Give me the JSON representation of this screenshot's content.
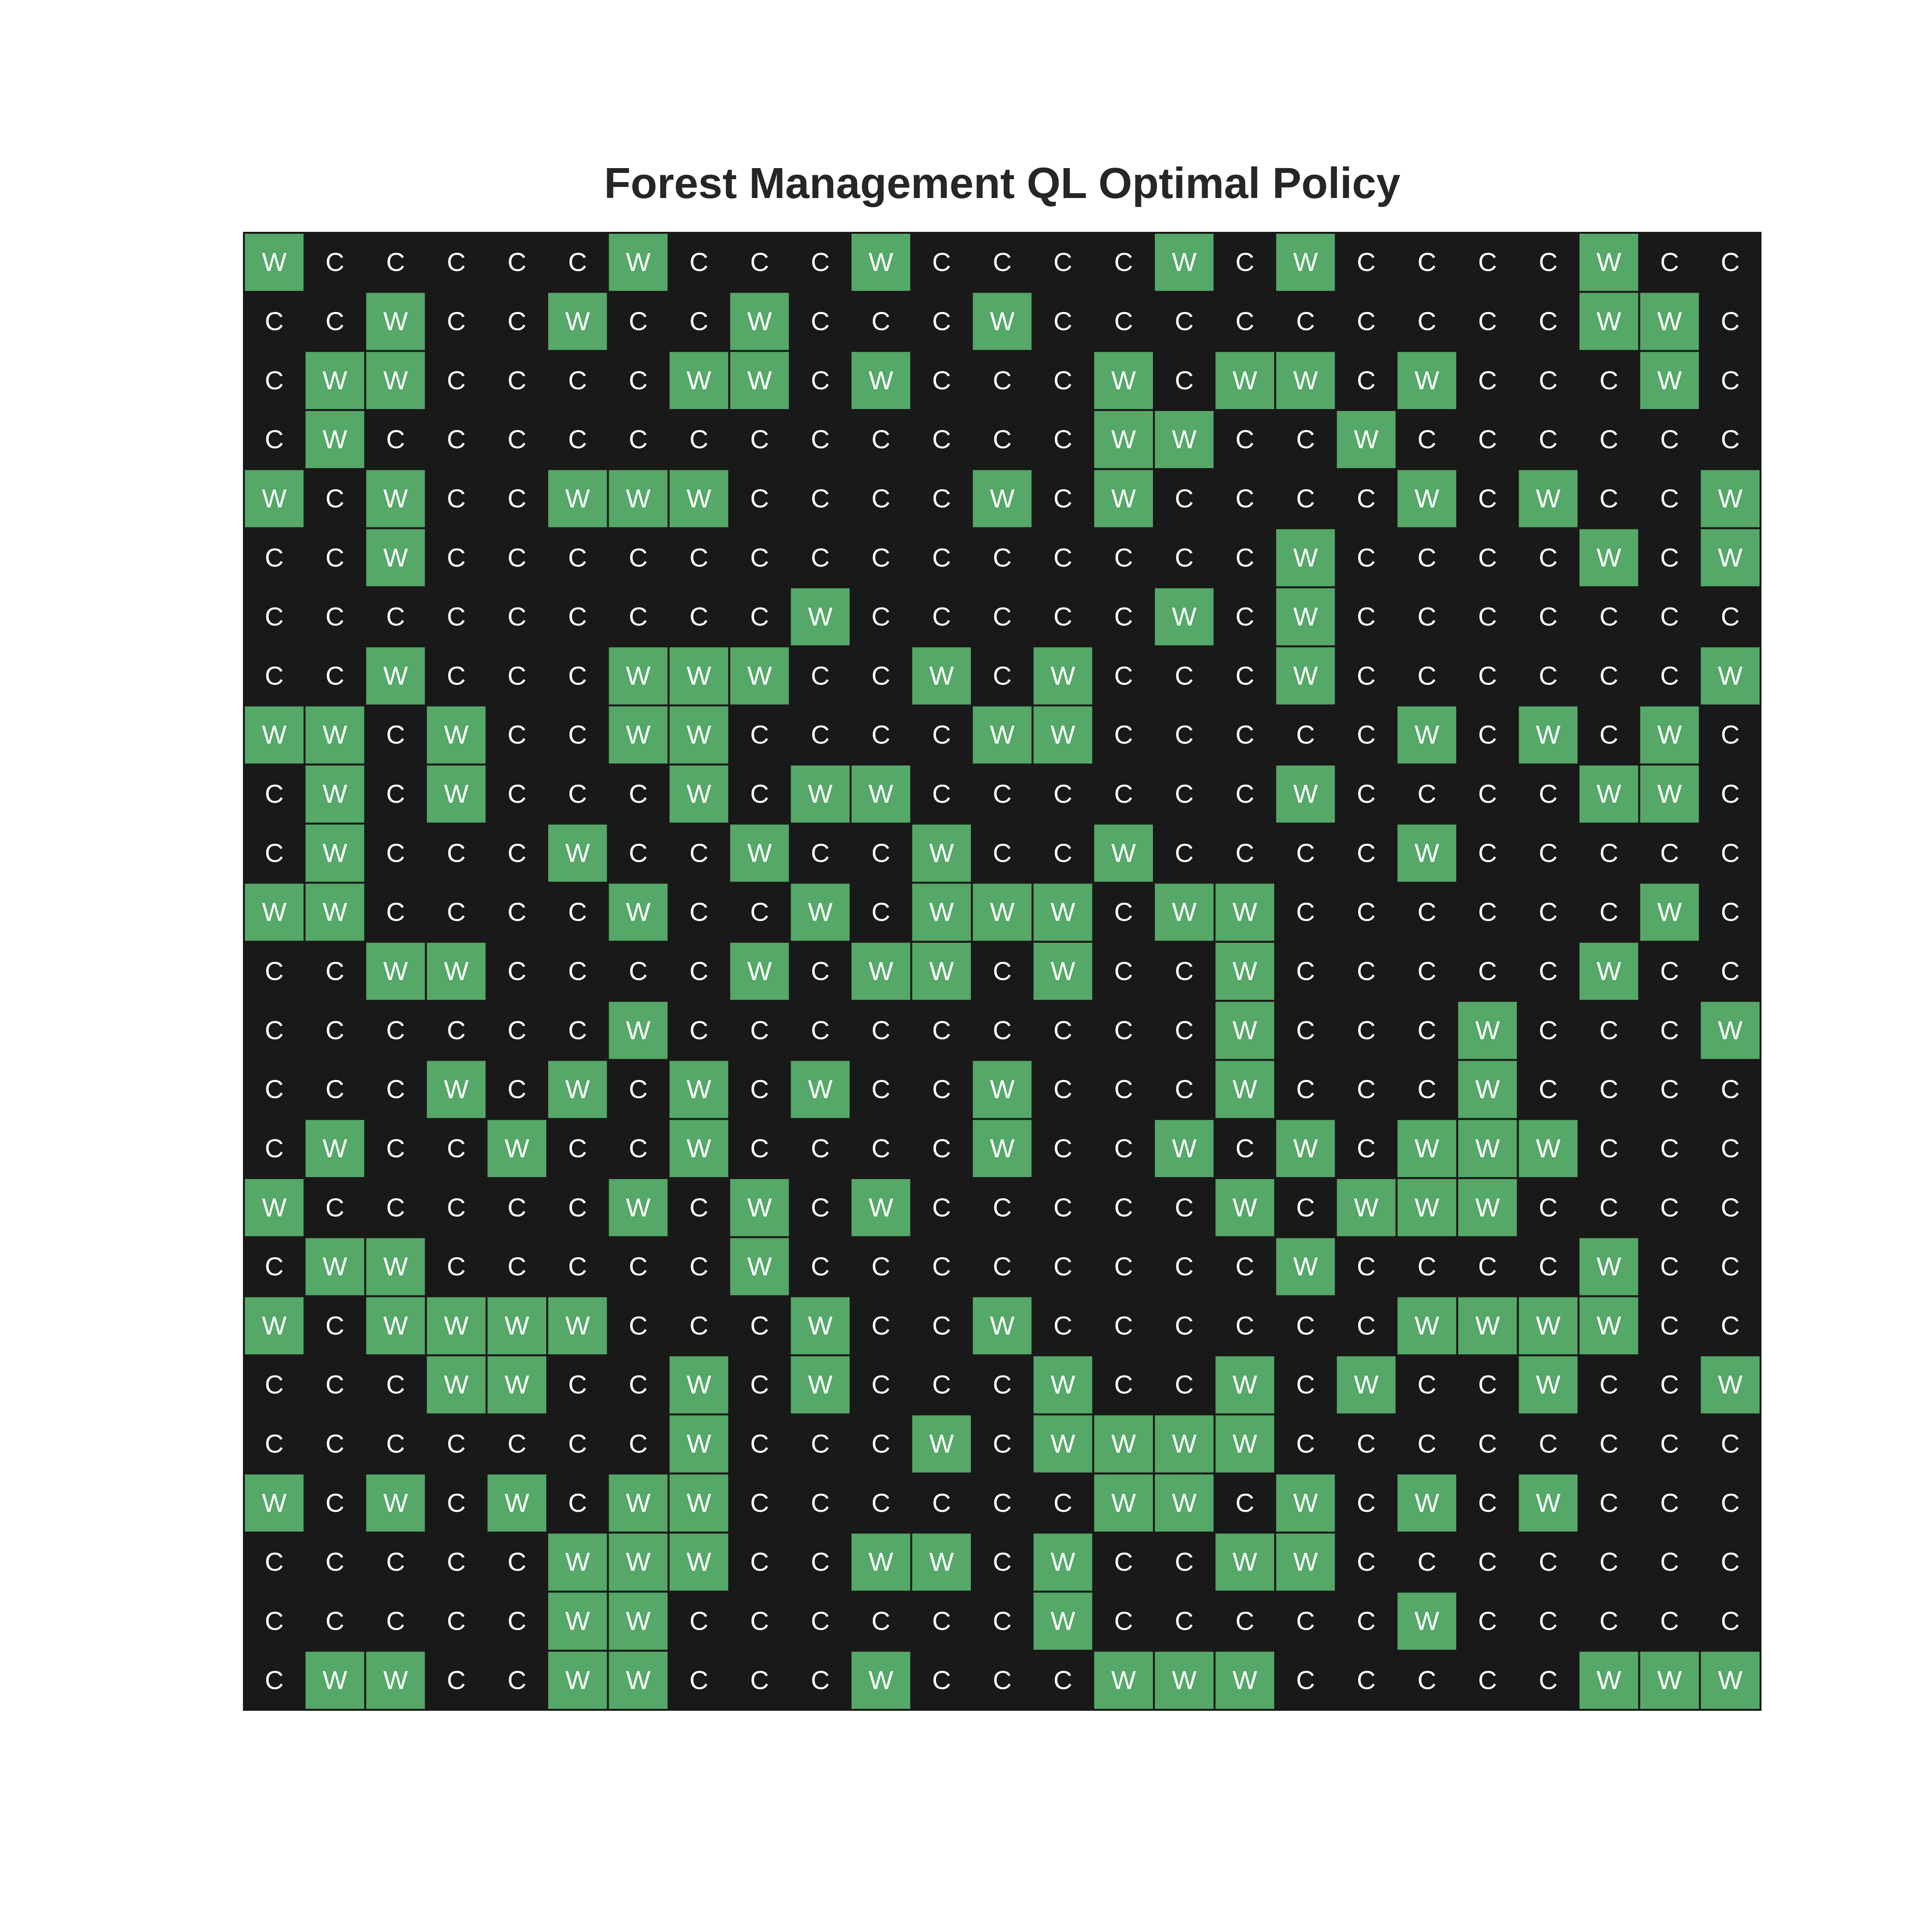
{
  "chart_data": {
    "type": "heatmap",
    "title": "Forest Management QL Optimal Policy",
    "xlabel": "",
    "ylabel": "",
    "rows": 25,
    "cols": 25,
    "grid": [
      "WCCCCCWCCCWCCCCWCWCCCCWCC",
      "CCWCCWCCWCCCWCCCCCCCCCWWC",
      "CWWCCCCWWCWCCCWCWWCWCCCWC",
      "CWCCCCCCCCCCCCWWCCWCCCCCC",
      "WCWCCWWWCCCCWCWCCCCWCWCCW",
      "CCWCCCCCCCCCCCCCCWCCCCWCW",
      "CCCCCCCCCWCCCCCWCWCCCCCCC",
      "CCWCCCWWWCCWCWCCCWCCCCCCW",
      "WWCWCCWWCCCCWWCCCCCWCWCWC",
      "CWCWCCCWCWWCCCCCCWCCCCWWC",
      "CWCCCWCCWCCWCCWCCCCWCCCCC",
      "WWCCCCWCCWCWWWCWWCCCCCCWC",
      "CCWWCCCCWCWWCWCCWCCCCCWCC",
      "CCCCCCWCCCCCCCCCWCCCWCCCW",
      "CCCWCWCWCWCCWCCCWCCCWCCCC",
      "CWCCWCCWCCCCWCCWCWCWWWCCC",
      "WCCCCCWCWCWCCCCCWCWWWCCCC",
      "CWWCCCCCWCCCCCCCCWCCCCWCC",
      "WCWWWWCCCWCCWCCCCCCWWWWCC",
      "CCCWWCCWCWCCCWCCWCWCCWCCW",
      "CCCCCCCWCCCWCWWWWCCCCCCCC",
      "WCWCWCWWCCCCCCWWCWCWCWCCC",
      "CCCCCWWWCCWWCWCCWWCCCCCCC",
      "CCCCCWWCCCCCCWCCCCCWCCCCC",
      "CWWCCWWCCCWCCCWWWCCCCCWWW"
    ],
    "colors": {
      "W": "#55a868",
      "C": "#191919",
      "text": "#ffffff",
      "title": "#262626"
    },
    "grid_lines": true,
    "legend": false
  }
}
